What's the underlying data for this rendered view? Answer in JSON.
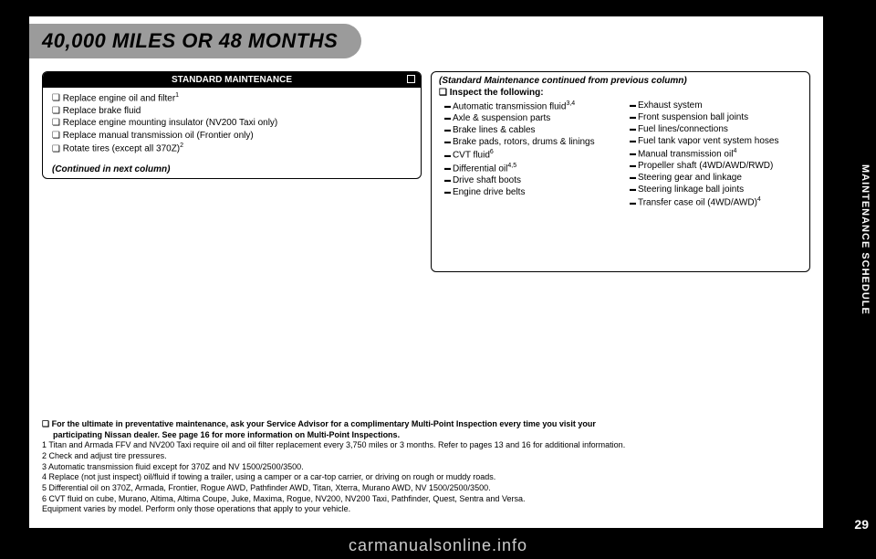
{
  "title": "40,000 MILES OR 48 MONTHS",
  "side_label": "MAINTENANCE SCHEDULE",
  "page_number": "29",
  "watermark": "carmanualsonline.info",
  "left_box": {
    "header": "STANDARD MAINTENANCE",
    "items": [
      {
        "text": "Replace engine oil and filter",
        "sup": "1"
      },
      {
        "text": "Replace brake fluid",
        "sup": ""
      },
      {
        "text": "Replace engine mounting insulator (NV200 Taxi only)",
        "sup": ""
      },
      {
        "text": "Replace manual transmission oil (Frontier only)",
        "sup": ""
      },
      {
        "text": "Rotate tires (except all 370Z)",
        "sup": "2"
      }
    ],
    "continued": "(Continued in next column)"
  },
  "right_box": {
    "cont_header": "(Standard Maintenance continued from previous column)",
    "inspect_label": "Inspect the following:",
    "col1": [
      {
        "text": "Automatic transmission fluid",
        "sup": "3,4"
      },
      {
        "text": "Axle & suspension parts",
        "sup": ""
      },
      {
        "text": "Brake lines & cables",
        "sup": ""
      },
      {
        "text": "Brake pads, rotors, drums & linings",
        "sup": ""
      },
      {
        "text": "CVT fluid",
        "sup": "6"
      },
      {
        "text": "Differential oil",
        "sup": "4,5"
      },
      {
        "text": "Drive shaft boots",
        "sup": ""
      },
      {
        "text": "Engine drive belts",
        "sup": ""
      }
    ],
    "col2": [
      {
        "text": "Exhaust system",
        "sup": ""
      },
      {
        "text": "Front suspension ball joints",
        "sup": ""
      },
      {
        "text": "Fuel lines/connections",
        "sup": ""
      },
      {
        "text": "Fuel tank vapor vent system hoses",
        "sup": ""
      },
      {
        "text": "Manual transmission oil",
        "sup": "4"
      },
      {
        "text": "Propeller shaft (4WD/AWD/RWD)",
        "sup": ""
      },
      {
        "text": "Steering gear and linkage",
        "sup": ""
      },
      {
        "text": "Steering linkage ball joints",
        "sup": ""
      },
      {
        "text": "Transfer case oil (4WD/AWD)",
        "sup": "4"
      }
    ]
  },
  "footnotes": {
    "lead1": "For the ultimate in preventative maintenance, ask your Service Advisor for a complimentary Multi-Point Inspection every time you visit your",
    "lead2": "participating Nissan dealer. See page 16 for more information on Multi-Point Inspections.",
    "notes": [
      "1 Titan and Armada FFV and NV200 Taxi require oil and oil filter replacement every 3,750 miles or 3 months. Refer to pages 13 and 16 for additional information.",
      "2 Check and adjust tire pressures.",
      "3 Automatic transmission fluid except for 370Z and NV 1500/2500/3500.",
      "4 Replace (not just inspect) oil/fluid if towing a trailer, using a camper or a car-top carrier, or driving on rough or muddy roads.",
      "5 Differential oil on 370Z, Armada, Frontier, Rogue AWD, Pathfinder AWD, Titan, Xterra, Murano AWD, NV 1500/2500/3500.",
      "6 CVT fluid on cube, Murano, Altima, Altima Coupe, Juke, Maxima, Rogue, NV200, NV200 Taxi, Pathfinder, Quest, Sentra and Versa.",
      "Equipment varies by model. Perform only those operations that apply to your vehicle."
    ]
  }
}
